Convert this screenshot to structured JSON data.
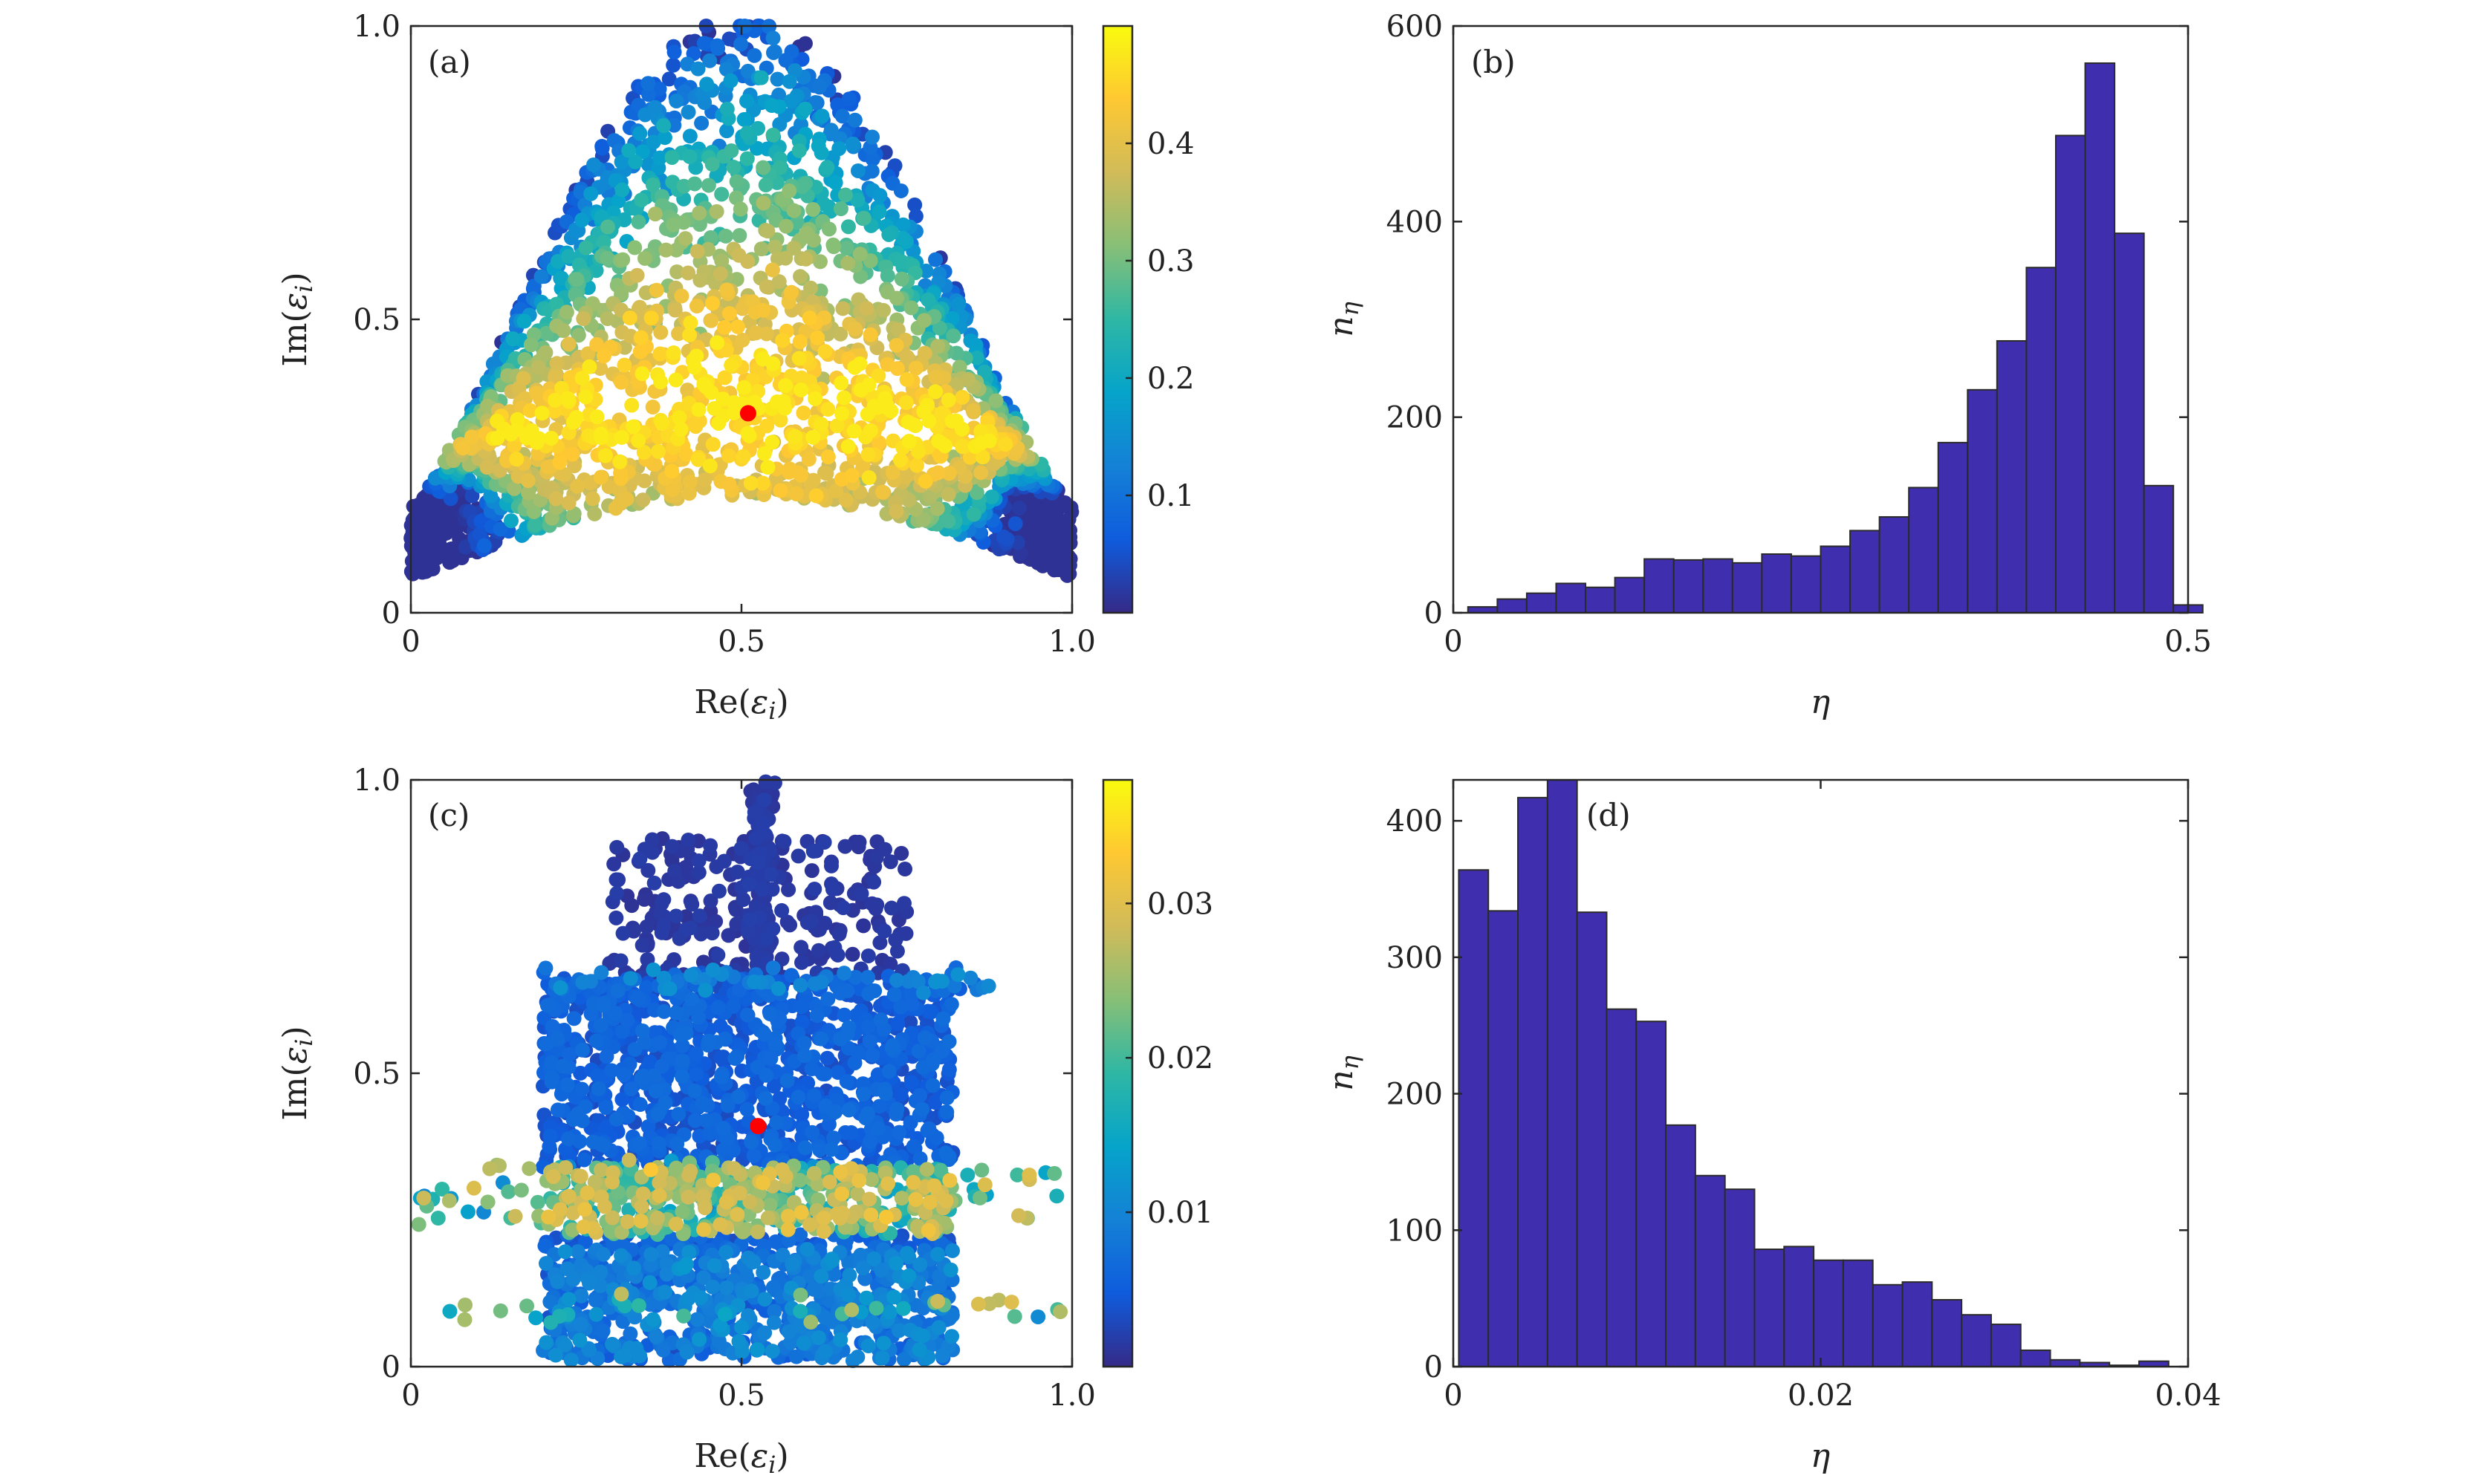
{
  "colors": {
    "bar_fill": "#3F2EAD",
    "highlight_point": "#FF0000",
    "parula": [
      "#352A87",
      "#0F5CDD",
      "#1481D6",
      "#06A4CA",
      "#2EB7A4",
      "#87BF77",
      "#D1BB59",
      "#FEC832",
      "#F9FB0E"
    ]
  },
  "chart_data": [
    {
      "id": "a",
      "type": "scatter",
      "panel_label": "(a)",
      "xlabel_text": "Re(",
      "xlabel_var": "ε",
      "xlabel_sub": "i",
      "xlabel_close": ")",
      "ylabel_text": "Im(",
      "ylabel_var": "ε",
      "ylabel_sub": "i",
      "ylabel_close": ")",
      "xlim": [
        0,
        1
      ],
      "ylim": [
        0,
        1
      ],
      "xticks": [
        0,
        0.5,
        1.0
      ],
      "xtick_labels": [
        "0",
        "0.5",
        "1.0"
      ],
      "yticks": [
        0,
        0.5,
        1.0
      ],
      "ytick_labels": [
        "0",
        "0.5",
        "1.0"
      ],
      "color_by": "eta",
      "clim": [
        0,
        0.5
      ],
      "colorbar_ticks": [
        0.1,
        0.2,
        0.3,
        0.4
      ],
      "colorbar_tick_labels": [
        "0.1",
        "0.2",
        "0.3",
        "0.4"
      ],
      "highlight": {
        "x": 0.51,
        "y": 0.34
      },
      "summary": "dome-shaped cloud of eigenvalues; eta near 0.45 in the center (0.25-0.45 Im), decreasing to ~0.05 at the top edge (Im ~ 1.0) and at the lower corners"
    },
    {
      "id": "b",
      "type": "bar",
      "panel_label": "(b)",
      "xlabel_var": "η",
      "ylabel_var": "n",
      "ylabel_sub": "η",
      "xlim": [
        0,
        0.5
      ],
      "ylim": [
        0,
        600
      ],
      "xticks": [
        0,
        0.5
      ],
      "xtick_labels": [
        "0",
        "0.5"
      ],
      "yticks": [
        0,
        200,
        400,
        600
      ],
      "ytick_labels": [
        "0",
        "200",
        "400",
        "600"
      ],
      "bin_start": 0.01,
      "bin_width": 0.02,
      "values": [
        6,
        14,
        20,
        30,
        26,
        36,
        55,
        54,
        55,
        51,
        60,
        58,
        68,
        84,
        98,
        128,
        174,
        228,
        278,
        353,
        488,
        562,
        388,
        130,
        8
      ]
    },
    {
      "id": "c",
      "type": "scatter",
      "panel_label": "(c)",
      "xlabel_text": "Re(",
      "xlabel_var": "ε",
      "xlabel_sub": "i",
      "xlabel_close": ")",
      "ylabel_text": "Im(",
      "ylabel_var": "ε",
      "ylabel_sub": "i",
      "ylabel_close": ")",
      "xlim": [
        0,
        1
      ],
      "ylim": [
        0,
        1
      ],
      "xticks": [
        0,
        0.5,
        1.0
      ],
      "xtick_labels": [
        "0",
        "0.5",
        "1.0"
      ],
      "yticks": [
        0,
        0.5,
        1.0
      ],
      "ytick_labels": [
        "0",
        "0.5",
        "1.0"
      ],
      "color_by": "eta",
      "clim": [
        0,
        0.038
      ],
      "colorbar_ticks": [
        0.01,
        0.02,
        0.03
      ],
      "colorbar_tick_labels": [
        "0.01",
        "0.02",
        "0.03"
      ],
      "highlight": {
        "x": 0.525,
        "y": 0.41
      },
      "summary": "eigenvalues spread over Re 0-1, Im 0-1; mostly low eta (dark blue) with a vertical spike near Re 0.5 up to Im 1.0 and green/yellow bands near Im 0.25-0.33"
    },
    {
      "id": "d",
      "type": "bar",
      "panel_label": "(d)",
      "xlabel_var": "η",
      "ylabel_var": "n",
      "ylabel_sub": "η",
      "xlim": [
        0,
        0.04
      ],
      "ylim": [
        0,
        430
      ],
      "xticks": [
        0,
        0.02,
        0.04
      ],
      "xtick_labels": [
        "0",
        "0.02",
        "0.04"
      ],
      "yticks": [
        0,
        100,
        200,
        300,
        400
      ],
      "ytick_labels": [
        "0",
        "100",
        "200",
        "300",
        "400"
      ],
      "bin_start": 0.0003,
      "bin_width": 0.00161,
      "values": [
        364,
        334,
        417,
        430,
        333,
        262,
        253,
        177,
        140,
        130,
        86,
        88,
        78,
        78,
        60,
        62,
        49,
        38,
        31,
        12,
        5,
        3,
        1,
        4
      ]
    }
  ]
}
